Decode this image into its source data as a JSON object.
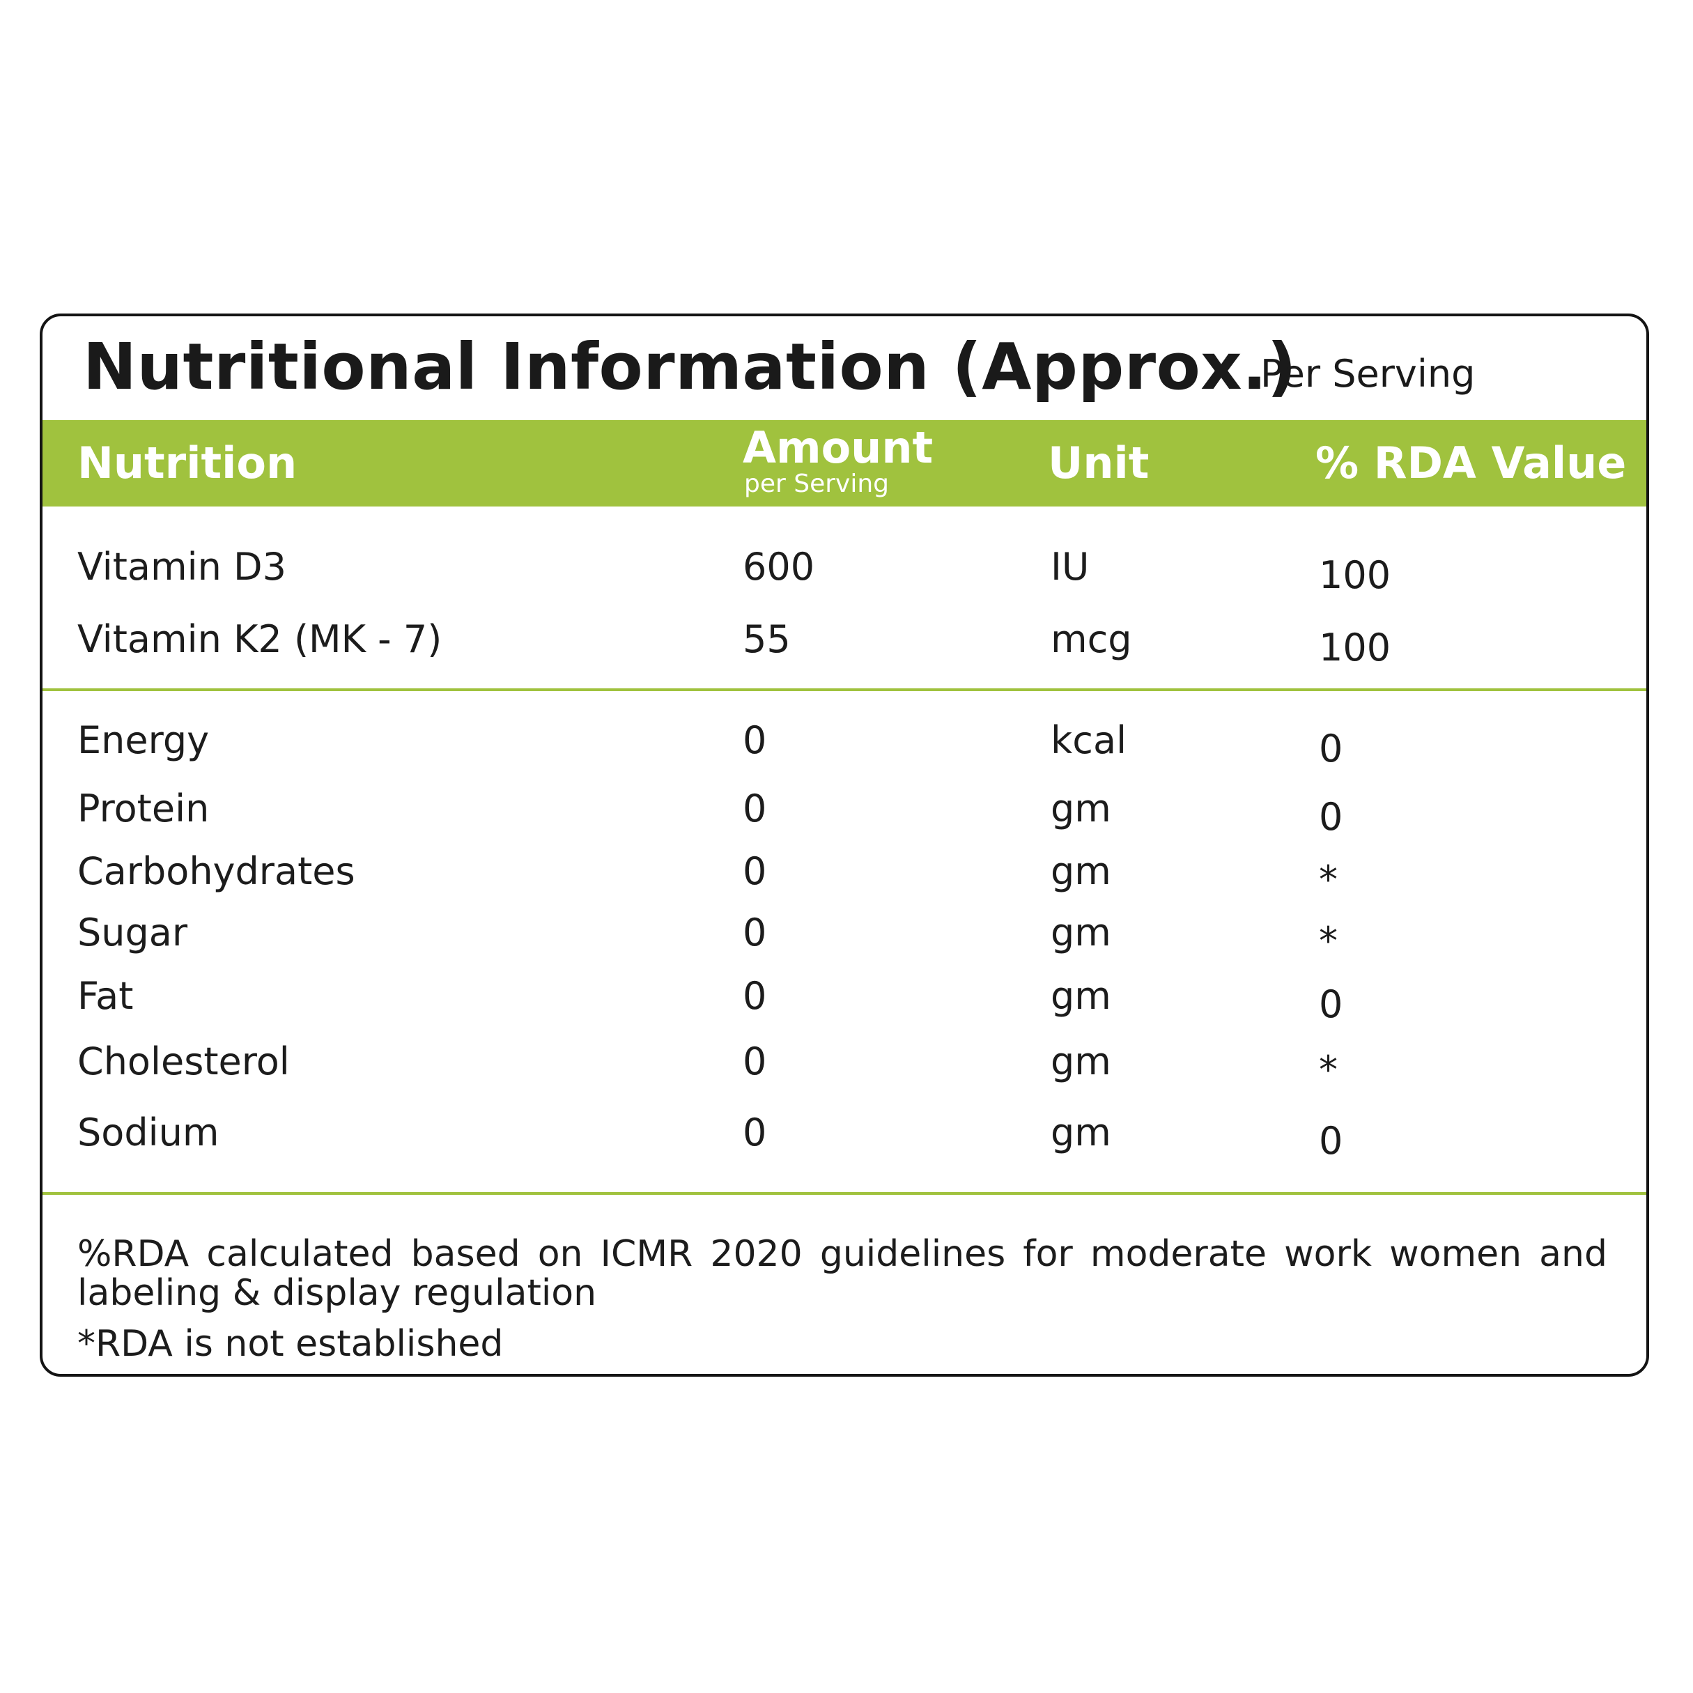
{
  "title": "Nutritional Information (Approx.)",
  "subtitle": "Per Serving",
  "colors": {
    "accent": "#a0c23e",
    "border": "#141414",
    "text": "#1c1c1c",
    "header_text": "#ffffff"
  },
  "header": {
    "nutrition": "Nutrition",
    "amount": "Amount",
    "amount_sub": "per Serving",
    "unit": "Unit",
    "rda": "% RDA Value"
  },
  "vitamins": [
    {
      "name": "Vitamin D3",
      "amount": "600",
      "unit": "IU",
      "rda": "100"
    },
    {
      "name": "Vitamin K2 (MK - 7)",
      "amount": "55",
      "unit": "mcg",
      "rda": "100"
    }
  ],
  "nutrients": [
    {
      "name": "Energy",
      "amount": "0",
      "unit": "kcal",
      "rda": "0"
    },
    {
      "name": "Protein",
      "amount": "0",
      "unit": "gm",
      "rda": "0"
    },
    {
      "name": "Carbohydrates",
      "amount": "0",
      "unit": "gm",
      "rda": "*"
    },
    {
      "name": "Sugar",
      "amount": "0",
      "unit": "gm",
      "rda": "*"
    },
    {
      "name": "Fat",
      "amount": "0",
      "unit": "gm",
      "rda": "0"
    },
    {
      "name": "Cholesterol",
      "amount": "0",
      "unit": "gm",
      "rda": "*"
    },
    {
      "name": "Sodium",
      "amount": "0",
      "unit": "gm",
      "rda": "0"
    }
  ],
  "footnotes": {
    "rda_basis": "%RDA calculated based on ICMR 2020 guidelines for moderate work women and labeling & display regulation",
    "not_established": "*RDA is not established"
  }
}
